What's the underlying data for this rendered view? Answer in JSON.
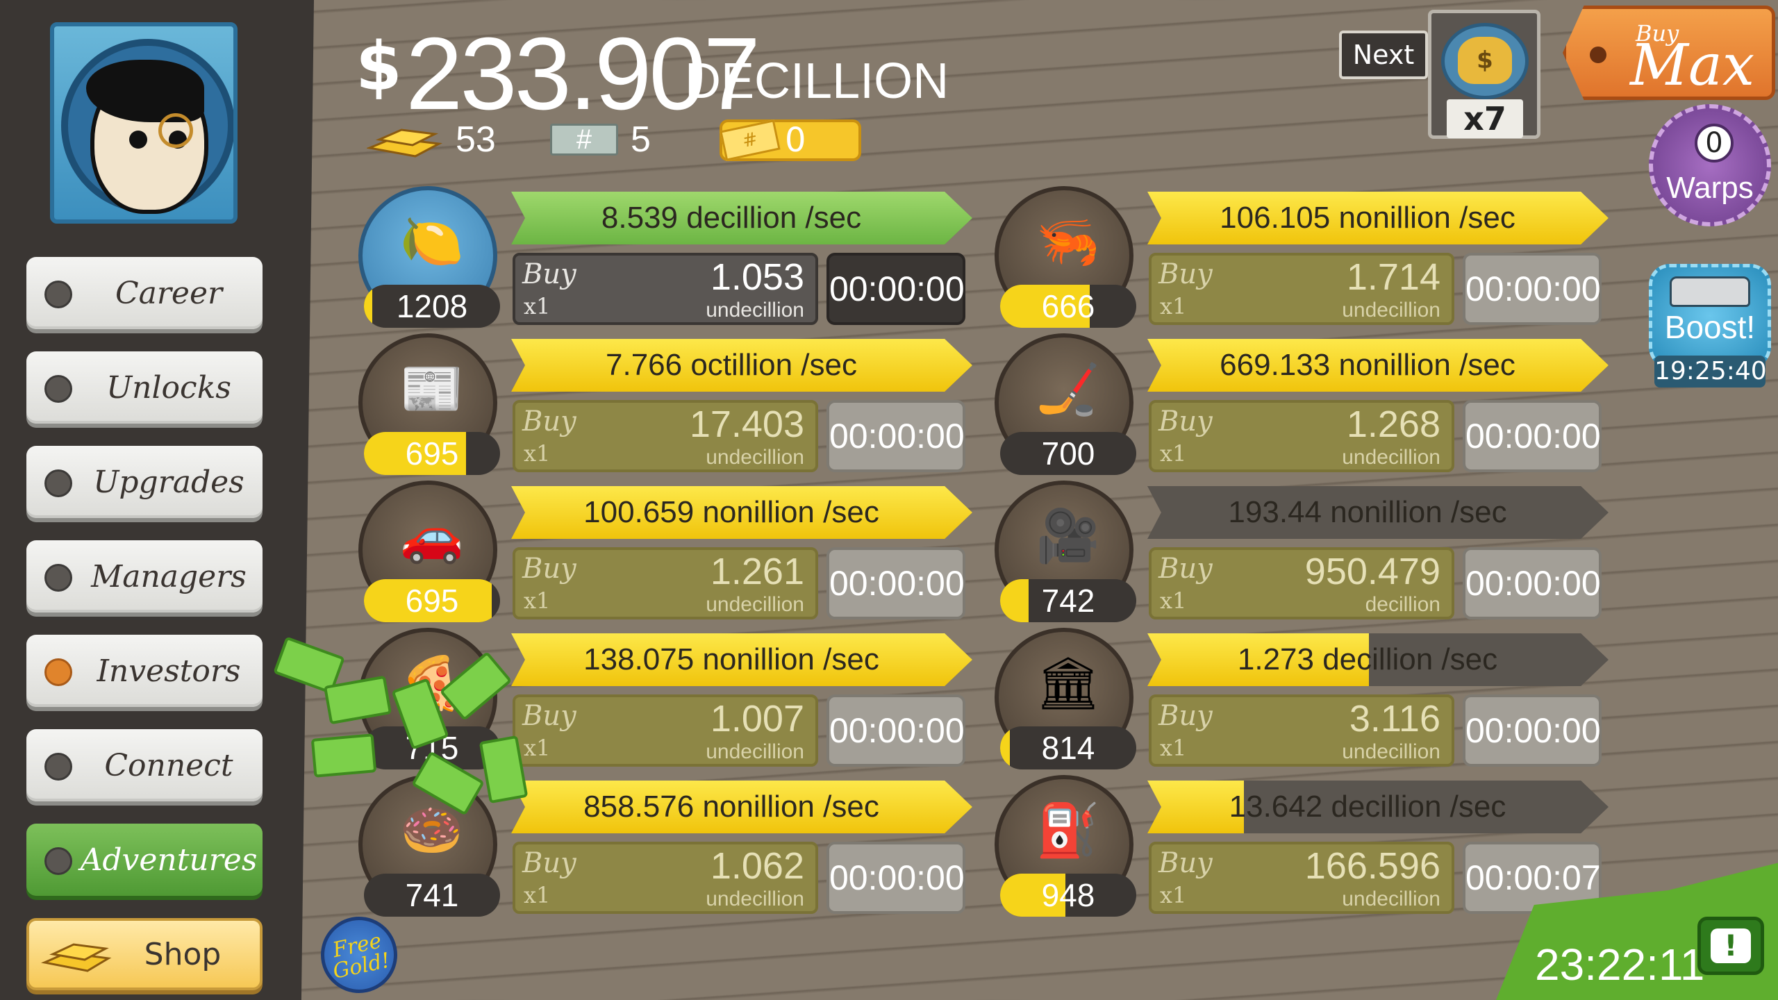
{
  "money": {
    "symbol": "$",
    "value": "233.907",
    "unit": "DECILLION"
  },
  "resources": {
    "gold": "53",
    "megaticket_symbol": "#",
    "megatickets": "5",
    "ticket_symbol": "#",
    "tickets": "0"
  },
  "next": {
    "label": "Next",
    "multiplier": "x7",
    "icon": "money-bag-icon"
  },
  "buy_max": {
    "small": "Buy",
    "big": "Max"
  },
  "warps": {
    "count": "0",
    "label": "Warps"
  },
  "boost": {
    "label": "Boost!",
    "timer": "19:25:40"
  },
  "sidebar": {
    "items": [
      {
        "label": "Career"
      },
      {
        "label": "Unlocks"
      },
      {
        "label": "Upgrades"
      },
      {
        "label": "Managers"
      },
      {
        "label": "Investors"
      },
      {
        "label": "Connect"
      },
      {
        "label": "Adventures"
      }
    ],
    "shop": {
      "label": "Shop"
    }
  },
  "businesses": [
    {
      "icon": "lemon-icon",
      "count": "1208",
      "count_fill": 0.06,
      "rate": "8.539 decillion /sec",
      "rate_fill": 1.0,
      "rate_style": "green",
      "buy": "Buy",
      "qty": "x1",
      "price": "1.053",
      "price_unit": "undecillion",
      "timer": "00:00:00",
      "style": "dark"
    },
    {
      "icon": "newspaper-icon",
      "count": "695",
      "count_fill": 0.75,
      "rate": "7.766 octillion /sec",
      "rate_fill": 1.0,
      "rate_style": "yellow",
      "buy": "Buy",
      "qty": "x1",
      "price": "17.403",
      "price_unit": "undecillion",
      "timer": "00:00:00",
      "style": "dim"
    },
    {
      "icon": "car-icon",
      "count": "695",
      "count_fill": 0.94,
      "rate": "100.659 nonillion /sec",
      "rate_fill": 1.0,
      "rate_style": "yellow",
      "buy": "Buy",
      "qty": "x1",
      "price": "1.261",
      "price_unit": "undecillion",
      "timer": "00:00:00",
      "style": "dim"
    },
    {
      "icon": "pizza-icon",
      "count": "715",
      "count_fill": 0.0,
      "rate": "138.075 nonillion /sec",
      "rate_fill": 1.0,
      "rate_style": "yellow",
      "buy": "Buy",
      "qty": "x1",
      "price": "1.007",
      "price_unit": "undecillion",
      "timer": "00:00:00",
      "style": "dim"
    },
    {
      "icon": "donut-icon",
      "count": "741",
      "count_fill": 0.0,
      "rate": "858.576 nonillion /sec",
      "rate_fill": 1.0,
      "rate_style": "yellow",
      "buy": "Buy",
      "qty": "x1",
      "price": "1.062",
      "price_unit": "undecillion",
      "timer": "00:00:00",
      "style": "dim"
    },
    {
      "icon": "shrimp-icon",
      "count": "666",
      "count_fill": 0.66,
      "rate": "106.105 nonillion /sec",
      "rate_fill": 1.0,
      "rate_style": "yellow",
      "buy": "Buy",
      "qty": "x1",
      "price": "1.714",
      "price_unit": "undecillion",
      "timer": "00:00:00",
      "style": "dim"
    },
    {
      "icon": "hockey-icon",
      "count": "700",
      "count_fill": 0.0,
      "rate": "669.133 nonillion /sec",
      "rate_fill": 1.0,
      "rate_style": "yellow",
      "buy": "Buy",
      "qty": "x1",
      "price": "1.268",
      "price_unit": "undecillion",
      "timer": "00:00:00",
      "style": "dim"
    },
    {
      "icon": "movie-camera-icon",
      "count": "742",
      "count_fill": 0.21,
      "rate": "193.44 nonillion /sec",
      "rate_fill": 0.0,
      "rate_style": "yellow",
      "buy": "Buy",
      "qty": "x1",
      "price": "950.479",
      "price_unit": "decillion",
      "timer": "00:00:00",
      "style": "dim"
    },
    {
      "icon": "bank-icon",
      "count": "814",
      "count_fill": 0.07,
      "rate": "1.273 decillion /sec",
      "rate_fill": 0.48,
      "rate_style": "yellow",
      "buy": "Buy",
      "qty": "x1",
      "price": "3.116",
      "price_unit": "undecillion",
      "timer": "00:00:00",
      "style": "dim"
    },
    {
      "icon": "oil-rig-icon",
      "count": "948",
      "count_fill": 0.48,
      "rate": "13.642 decillion /sec",
      "rate_fill": 0.21,
      "rate_style": "yellow",
      "buy": "Buy",
      "qty": "x1",
      "price": "166.596",
      "price_unit": "undecillion",
      "timer": "00:00:07",
      "style": "dim"
    }
  ],
  "free_gold": "Free Gold!",
  "clock": "23:22:11",
  "tv": "!",
  "colors": {
    "yellow": "#f6d41a",
    "green": "#6cb544",
    "background": "#857a6c",
    "sidebar": "#3a3633"
  }
}
